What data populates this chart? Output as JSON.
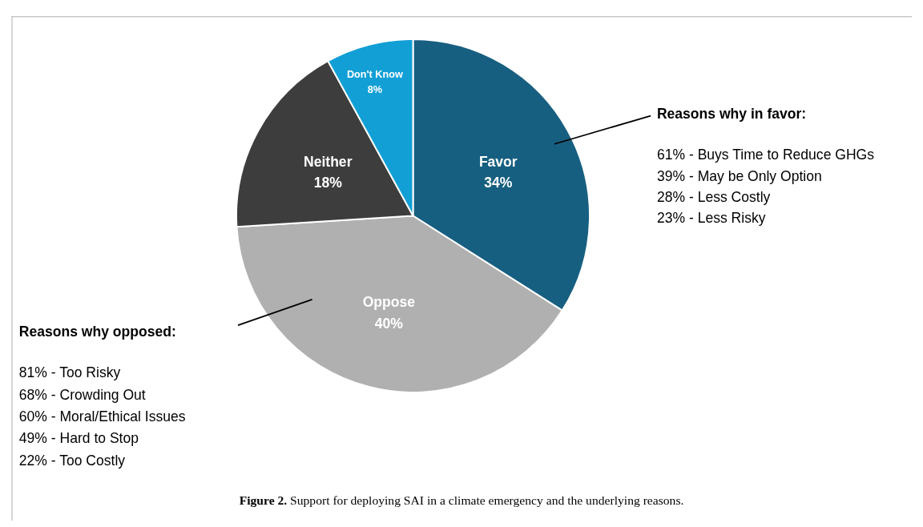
{
  "chart_data": {
    "type": "pie",
    "title": "Figure 2. Support for deploying SAI in a climate emergency and the underlying reasons.",
    "categories": [
      "Favor",
      "Oppose",
      "Neither",
      "Don't Know"
    ],
    "values": [
      34,
      40,
      18,
      8
    ],
    "value_labels": [
      "34%",
      "40%",
      "18%",
      "8%"
    ],
    "colors": [
      "#175f80",
      "#b0b0b0",
      "#3d3d3d",
      "#129fd6"
    ],
    "annotations": [
      "Reasons why in favor:\n61% - Buys Time to Reduce GHGs\n39% - May be Only Option\n28% - Less Costly\n23% - Less Risky",
      "Reasons why opposed:\n81% - Too Risky\n68% - Crowding Out\n60% - Moral/Ethical Issues\n49% - Hard to Stop\n22% - Too Costly"
    ],
    "data_labels": true
  }
}
